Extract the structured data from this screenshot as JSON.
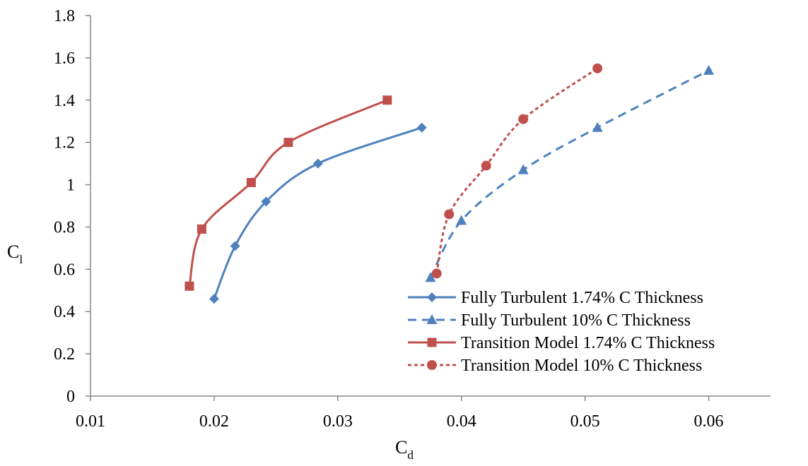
{
  "chart_data": {
    "type": "line",
    "title": "",
    "xlabel": "C",
    "xlabel_sub": "d",
    "ylabel": "C",
    "ylabel_sub": "l",
    "xlim": [
      0.01,
      0.065
    ],
    "ylim": [
      0,
      1.8
    ],
    "xticks": [
      "0.01",
      "0.02",
      "0.03",
      "0.04",
      "0.05",
      "0.06"
    ],
    "yticks": [
      "0",
      "0.2",
      "0.4",
      "0.6",
      "0.8",
      "1",
      "1.2",
      "1.4",
      "1.6",
      "1.8"
    ],
    "grid": false,
    "legend_position": "bottom-right",
    "series": [
      {
        "name": "Fully Turbulent 1.74% C Thickness",
        "color": "#4F81BD",
        "marker": "diamond",
        "dash": "solid",
        "x": [
          0.02,
          0.0217,
          0.0242,
          0.0284,
          0.0368
        ],
        "y": [
          0.46,
          0.71,
          0.92,
          1.1,
          1.27
        ]
      },
      {
        "name": "Fully Turbulent 10% C Thickness",
        "color": "#4F81BD",
        "marker": "triangle",
        "dash": "dashed",
        "x": [
          0.0375,
          0.04,
          0.045,
          0.051,
          0.06
        ],
        "y": [
          0.56,
          0.83,
          1.07,
          1.27,
          1.54
        ]
      },
      {
        "name": "Transition Model 1.74% C Thickness",
        "color": "#C0504D",
        "marker": "square",
        "dash": "solid",
        "x": [
          0.018,
          0.019,
          0.023,
          0.026,
          0.034
        ],
        "y": [
          0.52,
          0.79,
          1.01,
          1.2,
          1.4
        ]
      },
      {
        "name": "Transition Model 10% C Thickness",
        "color": "#C0504D",
        "marker": "circle",
        "dash": "dotted",
        "x": [
          0.038,
          0.039,
          0.042,
          0.045,
          0.051
        ],
        "y": [
          0.58,
          0.86,
          1.09,
          1.31,
          1.55
        ]
      }
    ]
  }
}
